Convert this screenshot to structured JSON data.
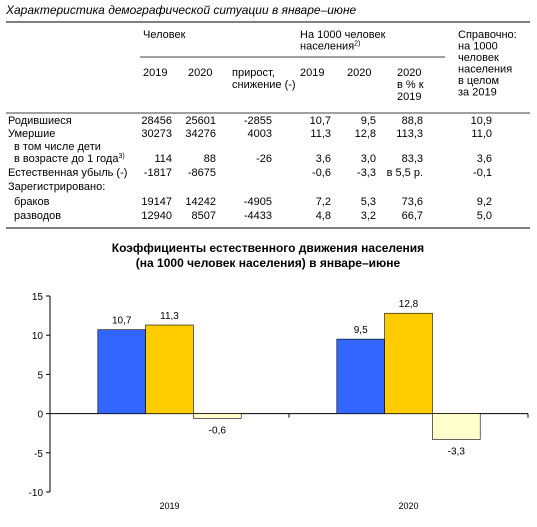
{
  "header": {
    "title": "Характеристика демографической ситуации в январе–июне"
  },
  "table": {
    "group_headers": [
      {
        "lines": [
          "Человек"
        ]
      },
      {
        "lines": [
          "На 1000 человек",
          "населения"
        ],
        "note": "2)"
      },
      {
        "lines": [
          "Справочно:",
          "на 1000",
          "человек",
          "населения",
          "в целом",
          "за 2019"
        ]
      }
    ],
    "sub_headers": [
      {
        "lines": [
          "2019"
        ]
      },
      {
        "lines": [
          "2020"
        ]
      },
      {
        "lines": [
          "прирост,",
          "снижение (-)"
        ]
      },
      {
        "lines": [
          "2019"
        ]
      },
      {
        "lines": [
          "2020"
        ]
      },
      {
        "lines": [
          "2020",
          "в % к",
          "2019"
        ]
      }
    ],
    "rows": [
      {
        "label": [
          "Родившиеся"
        ],
        "cells": [
          "28456",
          "25601",
          "-2855",
          "10,7",
          "9,5",
          "88,8",
          "10,9"
        ]
      },
      {
        "label": [
          "Умершие"
        ],
        "cells": [
          "30273",
          "34276",
          "4003",
          "11,3",
          "12,8",
          "113,3",
          "11,0"
        ]
      },
      {
        "label": [
          "в том числе дети",
          "в возрасте до 1 года"
        ],
        "note": "3)",
        "cells": [
          "114",
          "88",
          "-26",
          "3,6",
          "3,0",
          "83,3",
          "3,6"
        ]
      },
      {
        "label": [
          "Естественная убыль (-)"
        ],
        "cells": [
          "-1817",
          "-8675",
          null,
          "-0,6",
          "-3,3",
          "в 5,5 р.",
          "-0,1"
        ]
      },
      {
        "label": [
          "Зарегистрировано:"
        ],
        "cells": [
          null,
          null,
          null,
          null,
          null,
          null,
          null
        ]
      },
      {
        "label": [
          "браков"
        ],
        "cells": [
          "19147",
          "14242",
          "-4905",
          "7,2",
          "5,3",
          "73,6",
          "9,2"
        ]
      },
      {
        "label": [
          "разводов"
        ],
        "cells": [
          "12940",
          "8507",
          "-4433",
          "4,8",
          "3,2",
          "66,7",
          "5,0"
        ]
      }
    ]
  },
  "chart_data": {
    "type": "bar",
    "title": [
      "Коэффициенты естественного движения населения",
      "(на 1000 человек населения) в январе–июне"
    ],
    "categories": [
      "2019",
      "2020"
    ],
    "series": [
      {
        "color": "#3366ff",
        "values": [
          10.7,
          9.5
        ],
        "value_labels": [
          "10,7",
          "9,5"
        ]
      },
      {
        "color": "#ffcc00",
        "values": [
          11.3,
          12.8
        ],
        "value_labels": [
          "11,3",
          "12,8"
        ]
      },
      {
        "color": "#ffffcc",
        "values": [
          -0.6,
          -3.3
        ],
        "value_labels": [
          "-0,6",
          "-3,3"
        ]
      }
    ],
    "ylim": [
      -10,
      15
    ],
    "yticks": [
      -10,
      -5,
      0,
      5,
      10,
      15
    ],
    "grid": false
  }
}
